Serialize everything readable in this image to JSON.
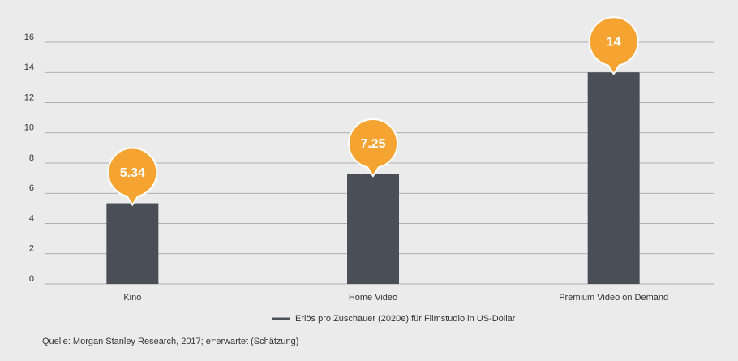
{
  "chart_data": {
    "type": "bar",
    "categories": [
      "Kino",
      "Home Video",
      "Premium Video on Demand"
    ],
    "series": [
      {
        "name": "Erlös pro Zuschauer (2020e) für Filmstudio in US-Dollar",
        "color": "#4a4f57",
        "values": [
          5.34,
          7.25,
          14
        ]
      }
    ],
    "label_color": "#f5a331",
    "ylim": [
      0,
      16
    ],
    "yticks": [
      0,
      2,
      4,
      6,
      8,
      10,
      12,
      14,
      16
    ],
    "grid": true,
    "source": "Quelle: Morgan Stanley Research, 2017; e=erwartet (Schätzung)"
  }
}
